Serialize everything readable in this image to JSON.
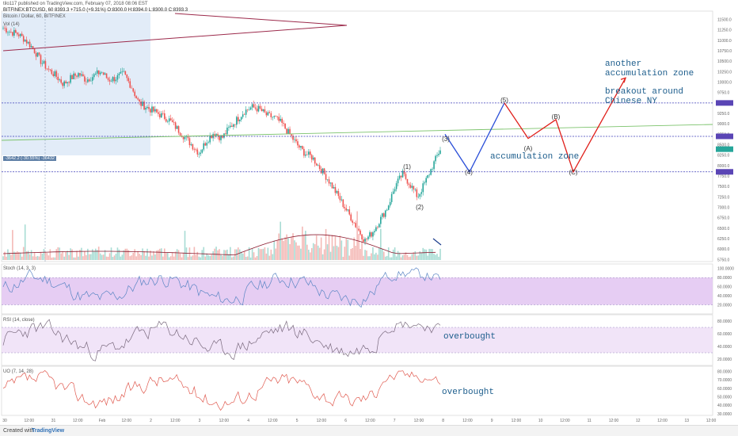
{
  "header": {
    "line1": "tilo117 published on TradingView.com, February 07, 2018 08:06 EST",
    "line2": "BITFINEX:BTCUSD, 60  8393.3  +715.0 (+9.31%)  O:8300.0  H:8394.0  L:8300.0  C:8393.3",
    "line3": "Bitcoin / Dollar, 60, BITFINEX",
    "line4": "Vol (14)"
  },
  "annotations": {
    "another_zone": "another\naccumulation zone",
    "breakout": "breakout around\nChinese NY",
    "accumulation": "accumulation zone",
    "overbought_rsi": "overbought",
    "overbought_uo": "overbought",
    "measure_label": "-3642.2 (-30.55%) -36432",
    "wave_labels": [
      "(1)",
      "(2)",
      "(3)",
      "(4)",
      "(5)",
      "(A)",
      "(B)",
      "(C)"
    ]
  },
  "panes": {
    "stoch": "Stoch (14, 3, 3)",
    "rsi": "RSI (14, close)",
    "uo": "UO (7, 14, 28)"
  },
  "footer": {
    "created": "Created with",
    "brand": "TradingView"
  },
  "colors": {
    "up": "#26a69a",
    "down": "#ef5350",
    "wave_blue": "#2b4fd8",
    "wave_red": "#e0201b",
    "hline": "#3b3bb8",
    "trendline": "#9c2a4b",
    "green_line": "#7cc36c",
    "note_text": "#1c5d8c"
  },
  "chart_data": [
    {
      "type": "candlestick",
      "title": "Bitcoin / Dollar, 60, BITFINEX",
      "x_ticks": [
        "30",
        "12:00",
        "31",
        "12:00",
        "Feb",
        "12:00",
        "2",
        "12:00",
        "3",
        "12:00",
        "4",
        "12:00",
        "5",
        "12:00",
        "6",
        "12:00",
        "7",
        "12:00",
        "8",
        "12:00",
        "9",
        "12:00",
        "10",
        "12:00",
        "11",
        "12:00",
        "12",
        "12:00",
        "13",
        "12:00"
      ],
      "y_ticks": [
        11500,
        11250,
        11000,
        10750,
        10500,
        10250,
        10000,
        9750,
        9500,
        9250,
        9000,
        8750,
        8500,
        8250,
        8000,
        7750,
        7500,
        7250,
        7000,
        6750,
        6500,
        6250,
        6000,
        5750
      ],
      "ylim": [
        5700,
        11700
      ],
      "close_path": [
        11300,
        11200,
        11150,
        11000,
        10800,
        10500,
        10300,
        10150,
        9950,
        10100,
        10200,
        10050,
        10150,
        10250,
        10050,
        10100,
        10200,
        9900,
        9500,
        9400,
        9300,
        9200,
        9100,
        8900,
        8700,
        8500,
        8300,
        8600,
        8800,
        8650,
        8900,
        9100,
        9300,
        9400,
        9350,
        9200,
        9150,
        9000,
        8750,
        8500,
        8300,
        8200,
        7950,
        7700,
        7400,
        7100,
        6800,
        6500,
        6200,
        6400,
        6700,
        7000,
        7500,
        7800,
        7550,
        7250,
        7600,
        8000,
        8393
      ],
      "horizontal_levels": [
        9500,
        8700,
        7850
      ],
      "projected_wave": [
        {
          "label": "(3)",
          "value": 8750
        },
        {
          "label": "(4)",
          "value": 7850
        },
        {
          "label": "(5)",
          "value": 9500
        },
        {
          "label": "(A)",
          "value": 8650
        },
        {
          "label": "(B)",
          "value": 9100
        },
        {
          "label": "(C)",
          "value": 7850
        },
        {
          "label": "",
          "value": 10100
        }
      ]
    },
    {
      "type": "line",
      "title": "Stoch (14, 3, 3)",
      "y_ticks": [
        100,
        80,
        60,
        40,
        20
      ],
      "ylim": [
        0,
        110
      ],
      "band": [
        20,
        80
      ]
    },
    {
      "type": "line",
      "title": "RSI (14, close)",
      "y_ticks": [
        80,
        60,
        40,
        20
      ],
      "ylim": [
        10,
        90
      ],
      "band": [
        30,
        70
      ]
    },
    {
      "type": "line",
      "title": "UO (7, 14, 28)",
      "y_ticks": [
        80,
        70,
        60,
        50,
        40,
        30
      ],
      "ylim": [
        28,
        86
      ]
    }
  ]
}
